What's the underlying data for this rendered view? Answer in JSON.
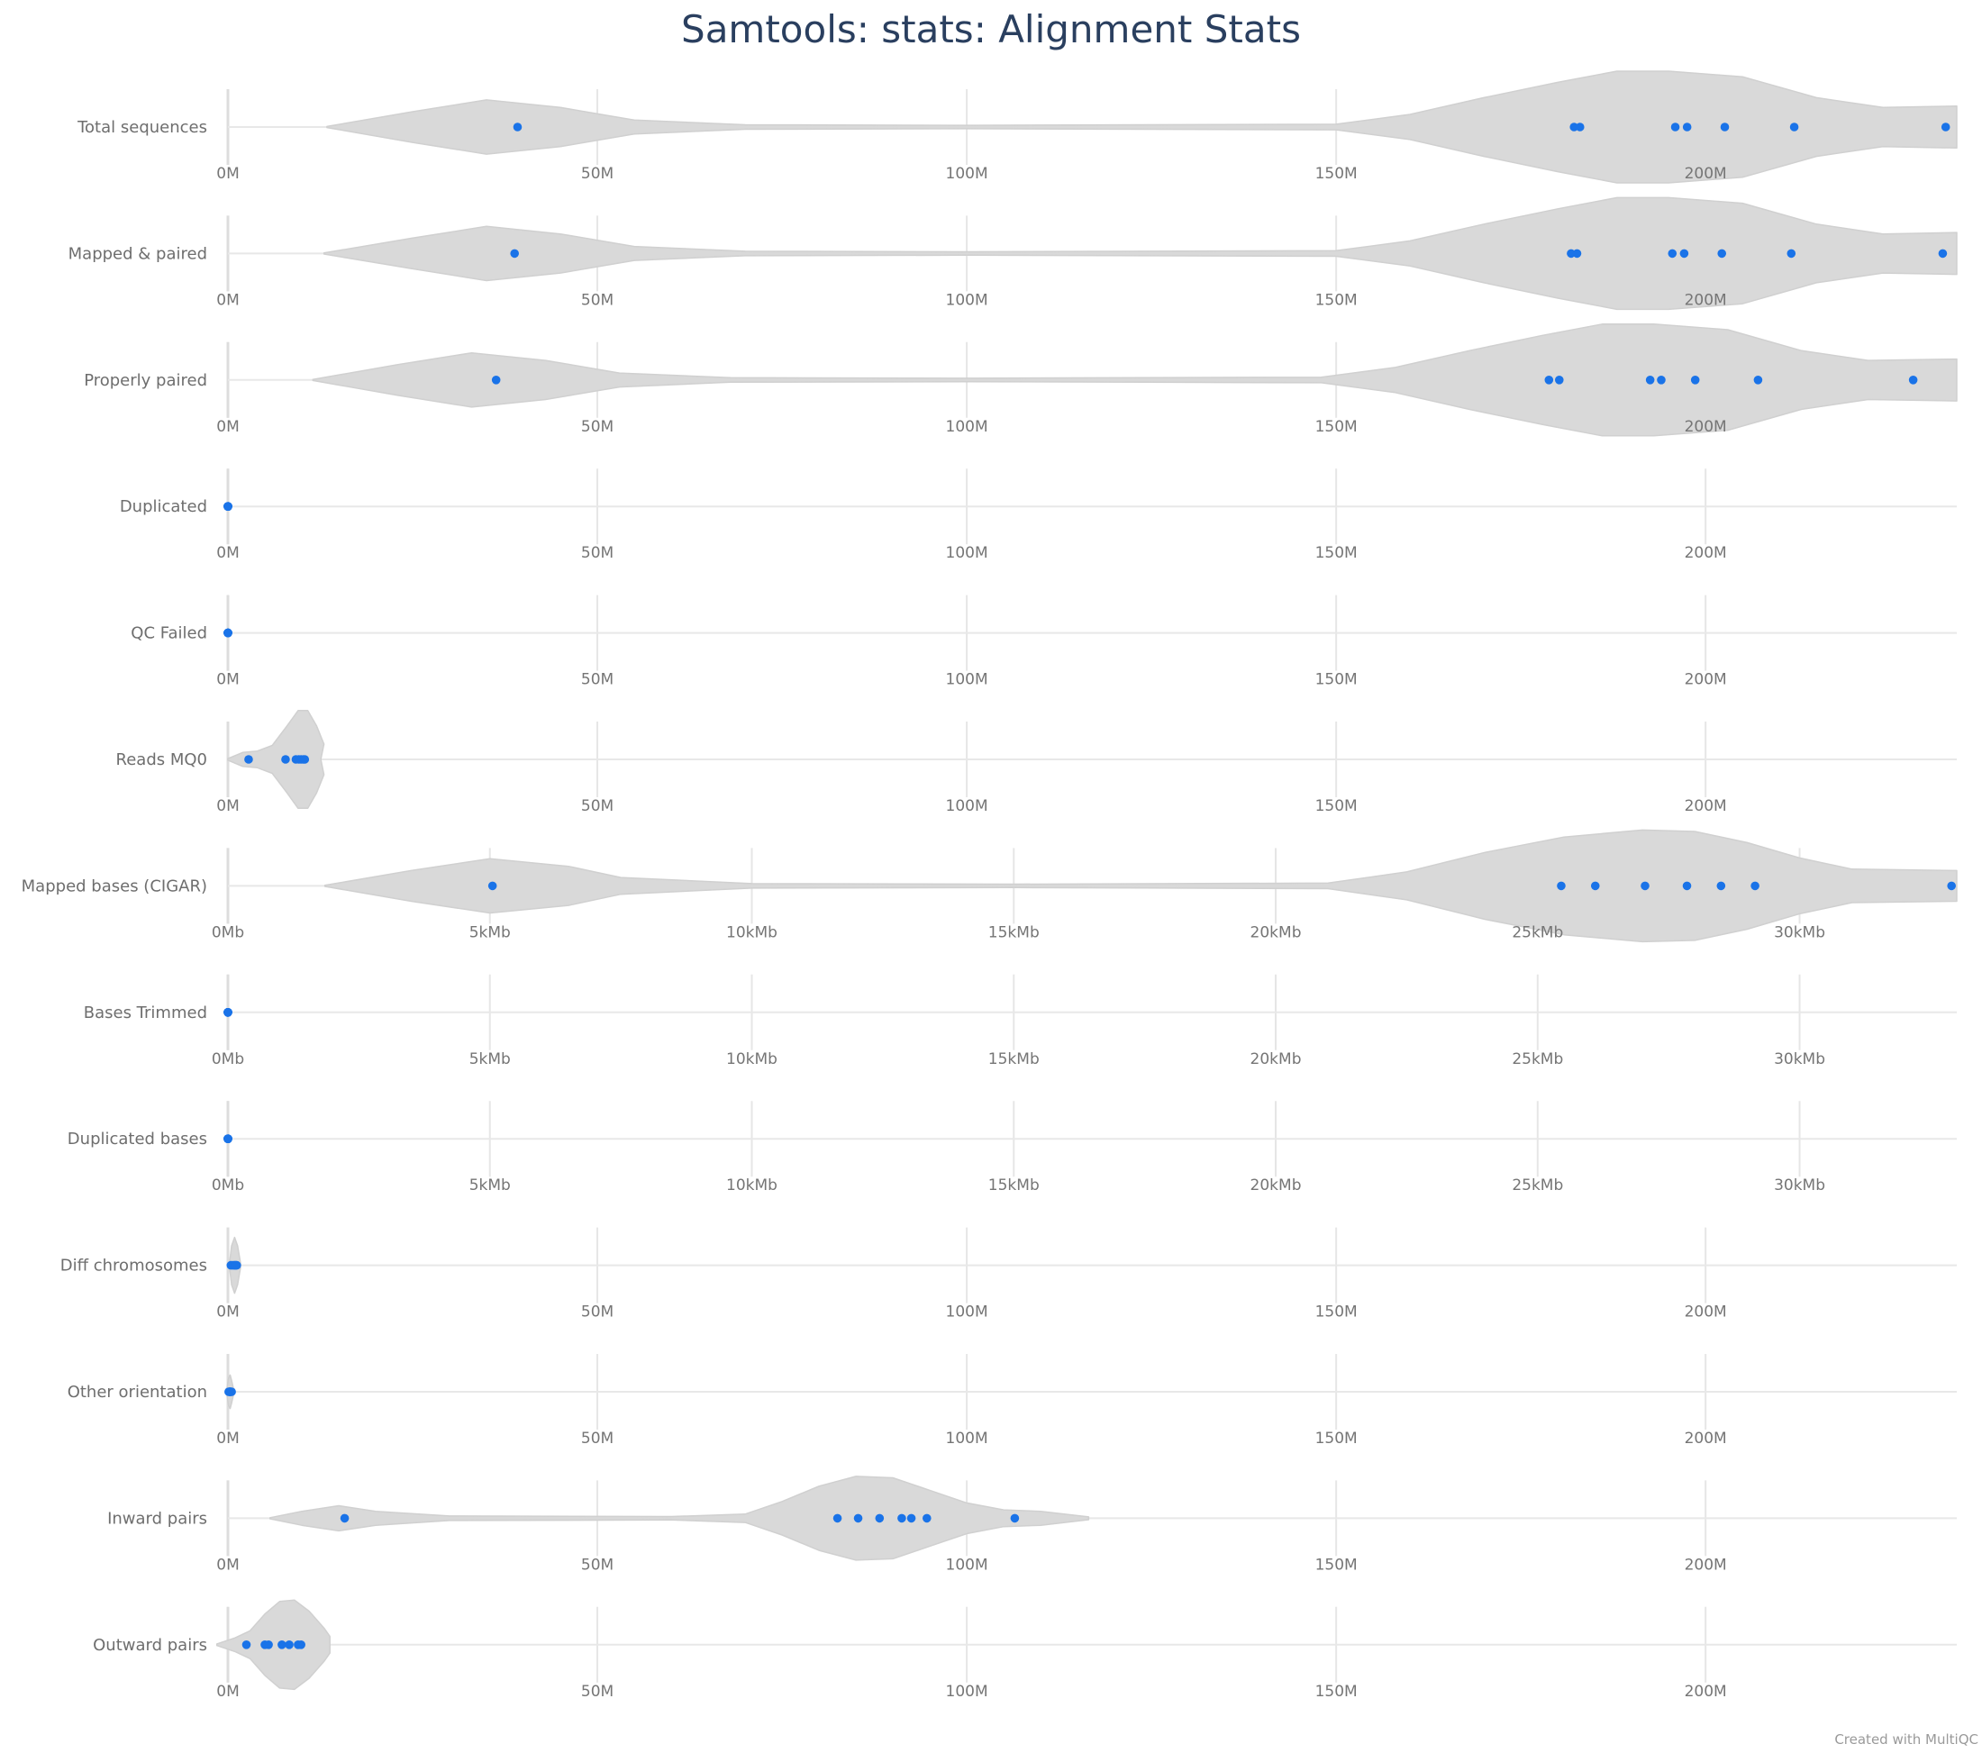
{
  "chart_data": {
    "type": "violin",
    "title": "Samtools: stats: Alignment Stats",
    "credit": "Created with MultiQC",
    "point_color": "#1a73e8",
    "violin_color": "#d9d9d9",
    "rows": [
      {
        "label": "Total sequences",
        "axis": "reads",
        "values": [
          39.2,
          182.2,
          183.0,
          195.9,
          197.5,
          202.6,
          212.0,
          232.5
        ]
      },
      {
        "label": "Mapped & paired",
        "axis": "reads",
        "values": [
          38.8,
          181.8,
          182.6,
          195.5,
          197.1,
          202.2,
          211.6,
          232.1
        ]
      },
      {
        "label": "Properly paired",
        "axis": "reads",
        "values": [
          36.3,
          178.8,
          180.2,
          192.5,
          194.0,
          198.6,
          207.1,
          228.1
        ]
      },
      {
        "label": "Duplicated",
        "axis": "reads",
        "values": [
          0,
          0,
          0,
          0,
          0,
          0,
          0,
          0
        ]
      },
      {
        "label": "QC Failed",
        "axis": "reads",
        "values": [
          0,
          0,
          0,
          0,
          0,
          0,
          0,
          0
        ]
      },
      {
        "label": "Reads MQ0",
        "axis": "reads",
        "values": [
          2.8,
          7.8,
          9.2,
          9.6,
          9.9,
          10.2,
          10.4
        ]
      },
      {
        "label": "Mapped bases (CIGAR)",
        "axis": "bases",
        "values": [
          5.05,
          25.45,
          26.1,
          27.05,
          27.85,
          28.5,
          29.15,
          32.9
        ]
      },
      {
        "label": "Bases Trimmed",
        "axis": "bases",
        "values": [
          0,
          0,
          0,
          0,
          0,
          0,
          0,
          0
        ]
      },
      {
        "label": "Duplicated bases",
        "axis": "bases",
        "values": [
          0,
          0,
          0,
          0,
          0,
          0,
          0,
          0
        ]
      },
      {
        "label": "Diff chromosomes",
        "axis": "reads",
        "values": [
          0.4,
          0.6,
          0.8,
          0.9,
          1.0,
          1.1,
          1.2
        ]
      },
      {
        "label": "Other orientation",
        "axis": "reads",
        "values": [
          0.1,
          0.2,
          0.25,
          0.3,
          0.35,
          0.4,
          0.5
        ]
      },
      {
        "label": "Inward pairs",
        "axis": "reads",
        "values": [
          15.8,
          82.5,
          85.3,
          88.2,
          91.2,
          92.5,
          94.6,
          106.5
        ]
      },
      {
        "label": "Outward pairs",
        "axis": "reads",
        "values": [
          2.5,
          5.0,
          5.5,
          7.3,
          8.3,
          9.5,
          9.9
        ]
      }
    ],
    "axes": {
      "reads": {
        "min": 0,
        "max": 234,
        "ticks": [
          0,
          50,
          100,
          150,
          200
        ],
        "tick_labels": [
          "0M",
          "50M",
          "100M",
          "150M",
          "200M"
        ]
      },
      "bases": {
        "min": 0,
        "max": 33,
        "ticks": [
          0,
          5,
          10,
          15,
          20,
          25,
          30
        ],
        "tick_labels": [
          "0Mb",
          "5kMb",
          "10kMb",
          "15kMb",
          "20kMb",
          "25kMb",
          "30kMb"
        ]
      }
    },
    "violins": [
      {
        "row": 0,
        "shape": [
          [
            13.4,
            0.02
          ],
          [
            25,
            0.55
          ],
          [
            35,
            0.97
          ],
          [
            45,
            0.7
          ],
          [
            55,
            0.25
          ],
          [
            70,
            0.08
          ],
          [
            100,
            0.06
          ],
          [
            150,
            0.1
          ],
          [
            160,
            0.45
          ],
          [
            170,
            1.05
          ],
          [
            180,
            1.6
          ],
          [
            188,
            2.0
          ],
          [
            195,
            2.0
          ],
          [
            205,
            1.8
          ],
          [
            215,
            1.05
          ],
          [
            224,
            0.7
          ],
          [
            234,
            0.75
          ]
        ]
      },
      {
        "row": 1,
        "shape": [
          [
            13,
            0.02
          ],
          [
            25,
            0.55
          ],
          [
            35,
            0.97
          ],
          [
            45,
            0.7
          ],
          [
            55,
            0.25
          ],
          [
            70,
            0.08
          ],
          [
            100,
            0.06
          ],
          [
            150,
            0.1
          ],
          [
            160,
            0.45
          ],
          [
            170,
            1.05
          ],
          [
            180,
            1.6
          ],
          [
            188,
            2.0
          ],
          [
            195,
            2.0
          ],
          [
            205,
            1.8
          ],
          [
            215,
            1.05
          ],
          [
            224,
            0.7
          ],
          [
            234,
            0.75
          ]
        ]
      },
      {
        "row": 2,
        "shape": [
          [
            11.5,
            0.02
          ],
          [
            23,
            0.55
          ],
          [
            33,
            0.97
          ],
          [
            43,
            0.7
          ],
          [
            53,
            0.25
          ],
          [
            68,
            0.08
          ],
          [
            100,
            0.06
          ],
          [
            148,
            0.1
          ],
          [
            158,
            0.45
          ],
          [
            168,
            1.05
          ],
          [
            178,
            1.6
          ],
          [
            186,
            2.0
          ],
          [
            193,
            2.0
          ],
          [
            203,
            1.8
          ],
          [
            213,
            1.05
          ],
          [
            222,
            0.7
          ],
          [
            234,
            0.75
          ]
        ]
      },
      {
        "row": 3,
        "shape": [
          [
            -0.3,
            0.06
          ],
          [
            0,
            0.06
          ],
          [
            0.3,
            0.06
          ]
        ]
      },
      {
        "row": 4,
        "shape": [
          [
            -0.3,
            0.06
          ],
          [
            0,
            0.06
          ],
          [
            0.3,
            0.06
          ]
        ]
      },
      {
        "row": 5,
        "shape": [
          [
            0,
            0.03
          ],
          [
            2,
            0.25
          ],
          [
            4,
            0.3
          ],
          [
            6,
            0.5
          ],
          [
            8,
            1.2
          ],
          [
            9.5,
            1.75
          ],
          [
            10.8,
            1.75
          ],
          [
            12,
            1.2
          ],
          [
            13,
            0.55
          ],
          [
            12.6,
            0.03
          ]
        ]
      },
      {
        "row": 6,
        "shape": [
          [
            1.85,
            0.02
          ],
          [
            3.5,
            0.55
          ],
          [
            5,
            0.97
          ],
          [
            6.5,
            0.7
          ],
          [
            7.5,
            0.3
          ],
          [
            10,
            0.08
          ],
          [
            15,
            0.06
          ],
          [
            21,
            0.1
          ],
          [
            22.5,
            0.5
          ],
          [
            24,
            1.2
          ],
          [
            25.5,
            1.75
          ],
          [
            27,
            2.0
          ],
          [
            28,
            1.95
          ],
          [
            29,
            1.55
          ],
          [
            30,
            1.0
          ],
          [
            31,
            0.6
          ],
          [
            33,
            0.55
          ]
        ]
      },
      {
        "row": 7,
        "shape": [
          [
            -0.04,
            0.06
          ],
          [
            0,
            0.06
          ],
          [
            0.04,
            0.06
          ]
        ]
      },
      {
        "row": 8,
        "shape": [
          [
            -0.04,
            0.06
          ],
          [
            0,
            0.06
          ],
          [
            0.04,
            0.06
          ]
        ]
      },
      {
        "row": 9,
        "shape": [
          [
            0.2,
            0.03
          ],
          [
            0.5,
            0.7
          ],
          [
            0.9,
            1.0
          ],
          [
            1.3,
            0.7
          ],
          [
            1.7,
            0.1
          ]
        ]
      },
      {
        "row": 10,
        "shape": [
          [
            -0.2,
            0.03
          ],
          [
            0.1,
            0.5
          ],
          [
            0.3,
            0.6
          ],
          [
            0.5,
            0.4
          ],
          [
            0.8,
            0.05
          ]
        ]
      },
      {
        "row": 11,
        "shape": [
          [
            5.7,
            0.02
          ],
          [
            10,
            0.25
          ],
          [
            15,
            0.45
          ],
          [
            20,
            0.25
          ],
          [
            30,
            0.08
          ],
          [
            60,
            0.06
          ],
          [
            70,
            0.15
          ],
          [
            75,
            0.6
          ],
          [
            80,
            1.15
          ],
          [
            85,
            1.5
          ],
          [
            90,
            1.45
          ],
          [
            95,
            1.0
          ],
          [
            100,
            0.55
          ],
          [
            105,
            0.3
          ],
          [
            110,
            0.25
          ],
          [
            116.5,
            0.05
          ]
        ]
      },
      {
        "row": 12,
        "shape": [
          [
            -1.5,
            0.03
          ],
          [
            1,
            0.25
          ],
          [
            3,
            0.5
          ],
          [
            5,
            1.1
          ],
          [
            7,
            1.55
          ],
          [
            9,
            1.6
          ],
          [
            11,
            1.2
          ],
          [
            13,
            0.6
          ],
          [
            13.8,
            0.3
          ]
        ]
      }
    ]
  }
}
